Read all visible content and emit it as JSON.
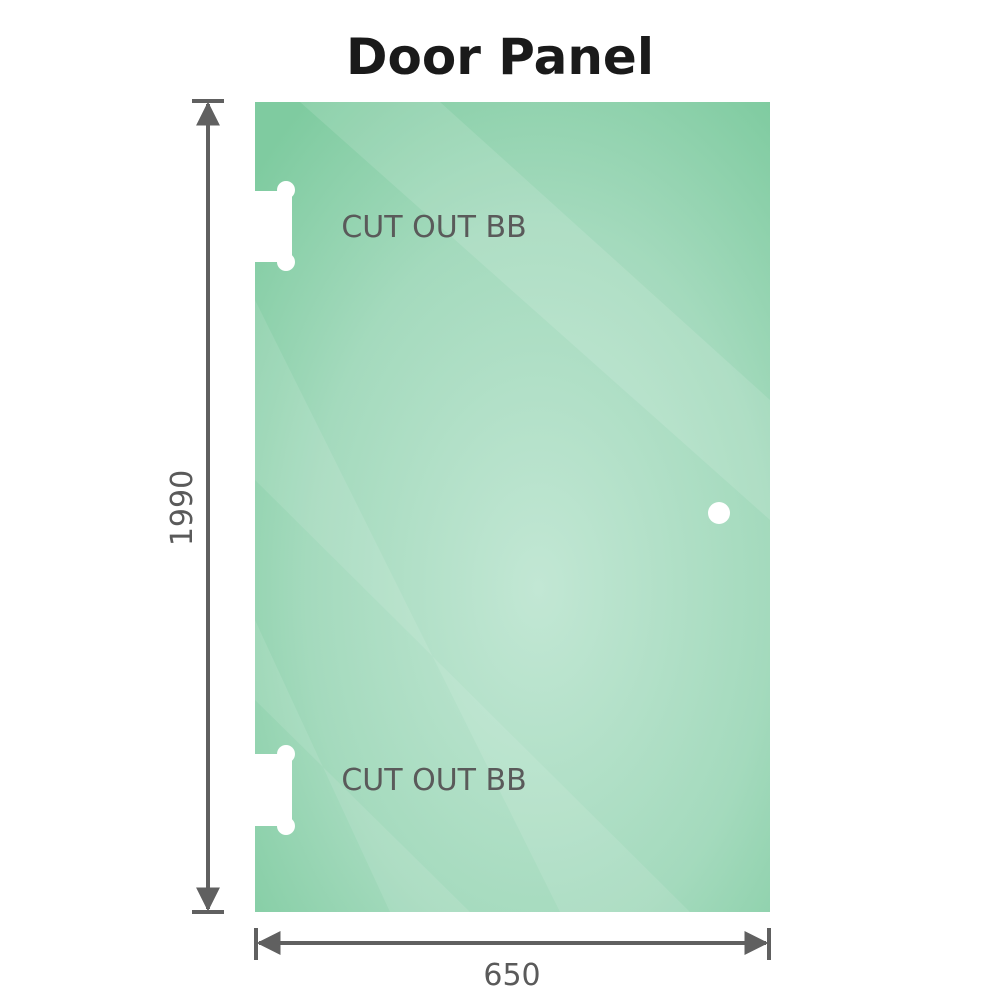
{
  "title": "Door Panel",
  "panel": {
    "color_edge": "#7fcba0",
    "color_center": "#bfe6d2",
    "cutouts": [
      {
        "label": "CUT OUT BB"
      },
      {
        "label": "CUT OUT BB"
      }
    ],
    "handle_hole": true
  },
  "dimensions": {
    "height": "1990",
    "width": "650",
    "line_color": "#606060"
  }
}
